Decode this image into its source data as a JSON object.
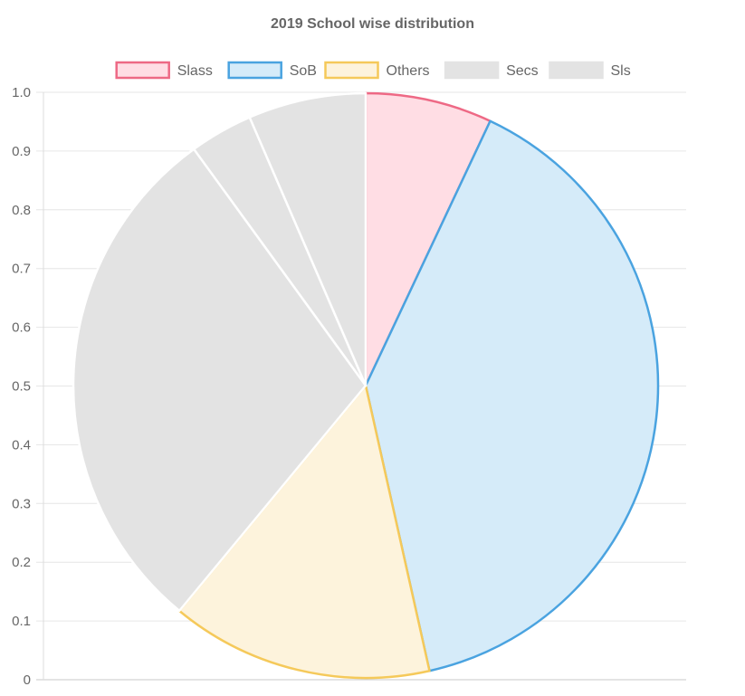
{
  "chart_data": {
    "type": "pie",
    "title": "2019 School wise distribution",
    "legend_position": "top",
    "grid": true,
    "ylim": [
      0,
      1.0
    ],
    "y_ticks": [
      "0",
      "0.1",
      "0.2",
      "0.3",
      "0.4",
      "0.5",
      "0.6",
      "0.7",
      "0.8",
      "0.9",
      "1.0"
    ],
    "slices": [
      {
        "label": "Slass",
        "value": 7,
        "fill": "#ffdde4",
        "stroke": "#ee6985"
      },
      {
        "label": "SoB",
        "value": 39.5,
        "fill": "#d5ebf9",
        "stroke": "#4aa3e0"
      },
      {
        "label": "Others",
        "value": 14.5,
        "fill": "#fdf3dc",
        "stroke": "#f5c95a"
      },
      {
        "label": "Secs",
        "value": 29,
        "fill": "#e3e3e3",
        "stroke": "#ffffff"
      },
      {
        "label": "Sls",
        "value": 3.5,
        "fill": "#e3e3e3",
        "stroke": "#ffffff"
      },
      {
        "label": "",
        "value": 6.5,
        "fill": "#e3e3e3",
        "stroke": "#ffffff"
      }
    ]
  }
}
